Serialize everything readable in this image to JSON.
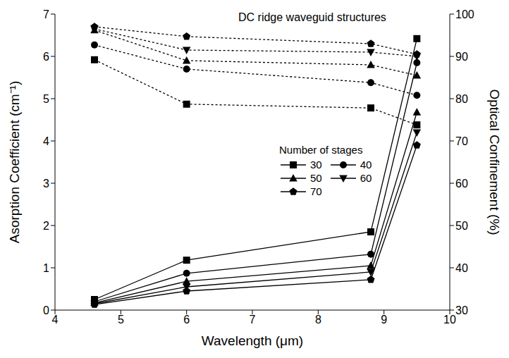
{
  "chart_data": {
    "type": "line",
    "annotations": [
      "DC ridge waveguid structures"
    ],
    "legend_title": "Number of stages",
    "legend": "center",
    "x_label": "Wavelength (μm)",
    "y_label": "Asorption Coefficient (cm⁻¹)",
    "y2_label": "Optical Confinement (%)",
    "x": [
      4.6,
      6,
      8.8,
      9.5
    ],
    "xlim": [
      4,
      10
    ],
    "xticks": [
      4,
      5,
      6,
      7,
      8,
      9,
      10
    ],
    "ylim": [
      0,
      7
    ],
    "yticks": [
      0,
      1,
      2,
      3,
      4,
      5,
      6,
      7
    ],
    "y2lim": [
      30,
      100
    ],
    "y2ticks": [
      30,
      40,
      50,
      60,
      70,
      80,
      90,
      100
    ],
    "series": [
      {
        "name": "30",
        "axis": "y",
        "marker": "square",
        "line_style": "solid",
        "color": "#000000",
        "values": [
          0.25,
          1.18,
          1.85,
          6.42
        ]
      },
      {
        "name": "40",
        "axis": "y",
        "marker": "circle",
        "line_style": "solid",
        "color": "#000000",
        "values": [
          0.2,
          0.87,
          1.32,
          5.85
        ]
      },
      {
        "name": "50",
        "axis": "y",
        "marker": "triangle",
        "line_style": "solid",
        "color": "#000000",
        "values": [
          0.17,
          0.68,
          1.05,
          4.68
        ]
      },
      {
        "name": "60",
        "axis": "y",
        "marker": "triangle-down",
        "line_style": "solid",
        "color": "#000000",
        "values": [
          0.15,
          0.55,
          0.9,
          4.2
        ]
      },
      {
        "name": "70",
        "axis": "y",
        "marker": "pentagon",
        "line_style": "solid",
        "color": "#000000",
        "values": [
          0.13,
          0.45,
          0.72,
          3.9
        ]
      },
      {
        "name": "30",
        "axis": "y2",
        "marker": "square",
        "line_style": "dotted",
        "color": "#000000",
        "values": [
          89.2,
          78.7,
          77.8,
          73.8
        ]
      },
      {
        "name": "40",
        "axis": "y2",
        "marker": "circle",
        "line_style": "dotted",
        "color": "#000000",
        "values": [
          92.7,
          87,
          83.8,
          80.8
        ]
      },
      {
        "name": "50",
        "axis": "y2",
        "marker": "triangle",
        "line_style": "dotted",
        "color": "#000000",
        "values": [
          96.2,
          89,
          88,
          85.5
        ]
      },
      {
        "name": "60",
        "axis": "y2",
        "marker": "triangle-down",
        "line_style": "dotted",
        "color": "#000000",
        "values": [
          96.5,
          91.5,
          91,
          90
        ]
      },
      {
        "name": "70",
        "axis": "y2",
        "marker": "pentagon",
        "line_style": "dotted",
        "color": "#000000",
        "values": [
          97,
          94.7,
          93,
          90.5
        ]
      }
    ]
  }
}
